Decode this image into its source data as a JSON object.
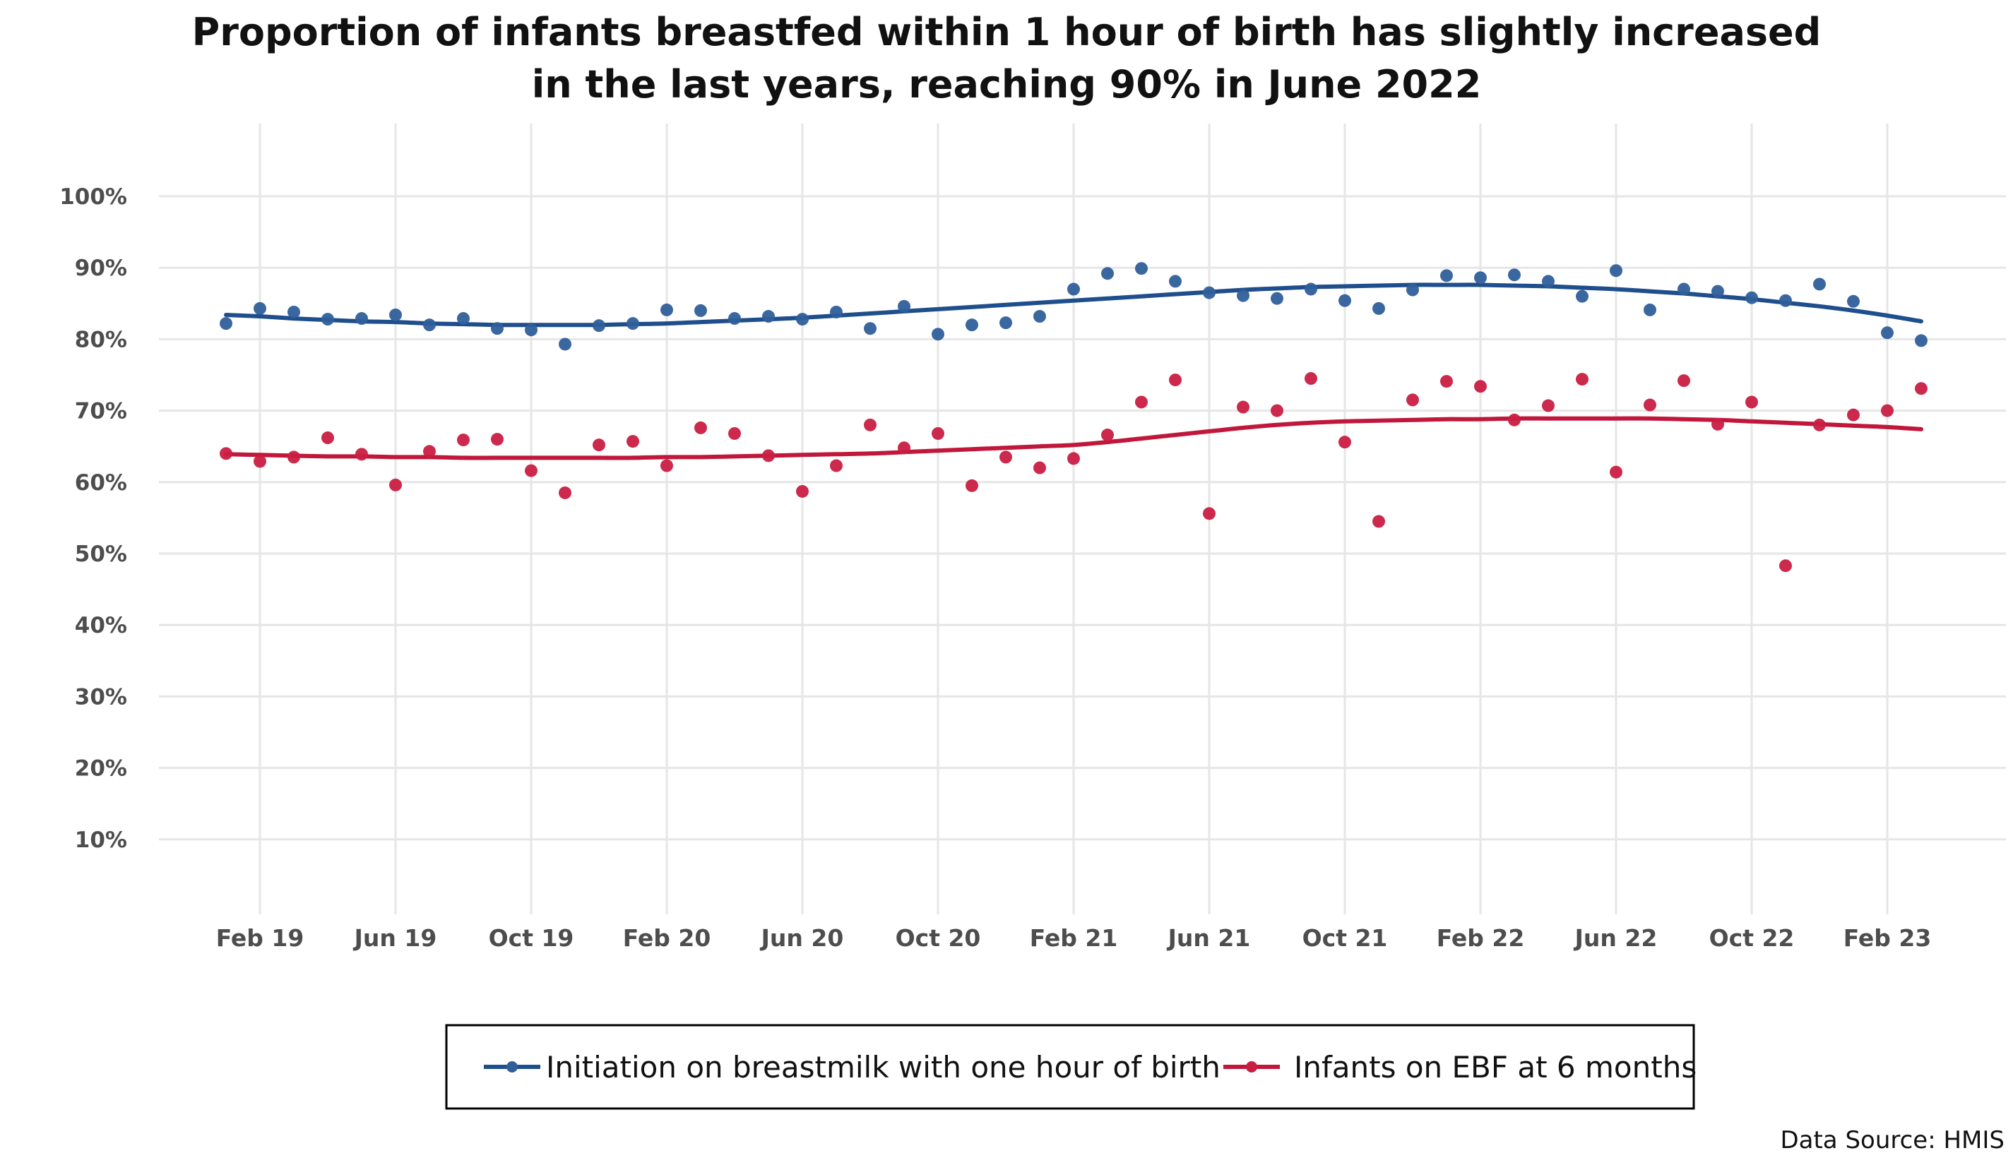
{
  "chart_data": {
    "type": "scatter",
    "title_lines": [
      "Proportion of infants breastfed within 1 hour of birth has slightly increased",
      "in the last years, reaching 90% in June 2022"
    ],
    "source": "Data Source: HMIS",
    "xlabel": "",
    "ylabel": "",
    "ylim": [
      0,
      105
    ],
    "y_ticks": [
      10,
      20,
      30,
      40,
      50,
      60,
      70,
      80,
      90,
      100
    ],
    "y_tick_labels": [
      "10%",
      "20%",
      "30%",
      "40%",
      "50%",
      "60%",
      "70%",
      "80%",
      "90%",
      "100%"
    ],
    "x_start": "Jan 19",
    "x_ticks": [
      1,
      5,
      9,
      13,
      17,
      21,
      25,
      29,
      33,
      37,
      41,
      45,
      49
    ],
    "x_tick_labels": [
      "Feb 19",
      "Jun 19",
      "Oct 19",
      "Feb 20",
      "Jun 20",
      "Oct 20",
      "Feb 21",
      "Jun 21",
      "Oct 21",
      "Feb 22",
      "Jun 22",
      "Oct 22",
      "Feb 23"
    ],
    "grid": true,
    "legend_position": "bottom",
    "series": [
      {
        "name": "Initiation on breastmilk with one hour of birth",
        "color": "#1f4e8c",
        "point_color": "#2f5f9a",
        "points": [
          82.2,
          84.3,
          83.8,
          82.8,
          82.9,
          83.4,
          82.0,
          82.9,
          81.5,
          81.3,
          79.3,
          81.9,
          82.2,
          84.1,
          84.0,
          82.9,
          83.2,
          82.8,
          83.8,
          81.5,
          84.6,
          80.7,
          82.0,
          82.3,
          83.2,
          87.0,
          89.2,
          89.9,
          88.1,
          86.5,
          86.1,
          85.7,
          87.0,
          85.4,
          84.3,
          86.9,
          88.9,
          88.6,
          89.0,
          88.1,
          86.0,
          89.6,
          84.1,
          87.0,
          86.7,
          85.8,
          85.4,
          87.7,
          85.3,
          80.9,
          79.8
        ],
        "trend": [
          83.4,
          83.2,
          82.9,
          82.7,
          82.5,
          82.4,
          82.2,
          82.1,
          82.0,
          82.0,
          82.0,
          82.0,
          82.1,
          82.2,
          82.4,
          82.6,
          82.8,
          83.0,
          83.3,
          83.6,
          83.9,
          84.2,
          84.5,
          84.8,
          85.1,
          85.4,
          85.7,
          86.0,
          86.3,
          86.6,
          86.9,
          87.1,
          87.3,
          87.4,
          87.5,
          87.6,
          87.6,
          87.6,
          87.5,
          87.4,
          87.2,
          87.0,
          86.7,
          86.4,
          86.0,
          85.6,
          85.1,
          84.6,
          84.0,
          83.3,
          82.5
        ]
      },
      {
        "name": "Infants on EBF at 6 months",
        "color": "#c0173b",
        "point_color": "#c91d42",
        "points": [
          64.0,
          62.9,
          63.5,
          66.2,
          63.9,
          59.6,
          64.3,
          65.9,
          66.0,
          61.6,
          58.5,
          65.2,
          65.7,
          62.3,
          67.6,
          66.8,
          63.7,
          58.7,
          62.3,
          68.0,
          64.8,
          66.8,
          59.5,
          63.5,
          62.0,
          63.3,
          66.6,
          71.2,
          74.3,
          55.6,
          70.5,
          70.0,
          74.5,
          65.6,
          54.5,
          71.5,
          74.1,
          73.4,
          68.7,
          70.7,
          74.4,
          61.4,
          70.8,
          74.2,
          68.1,
          71.2,
          48.3,
          68.0,
          69.4,
          70.0,
          73.1
        ],
        "trend": [
          63.9,
          63.8,
          63.7,
          63.6,
          63.6,
          63.5,
          63.5,
          63.4,
          63.4,
          63.4,
          63.4,
          63.4,
          63.4,
          63.5,
          63.5,
          63.6,
          63.7,
          63.8,
          63.9,
          64.0,
          64.2,
          64.4,
          64.6,
          64.8,
          65.0,
          65.2,
          65.6,
          66.1,
          66.6,
          67.1,
          67.6,
          68.0,
          68.3,
          68.5,
          68.6,
          68.7,
          68.8,
          68.8,
          68.9,
          68.9,
          68.9,
          68.9,
          68.9,
          68.8,
          68.7,
          68.5,
          68.3,
          68.1,
          67.9,
          67.7,
          67.4
        ]
      }
    ]
  }
}
